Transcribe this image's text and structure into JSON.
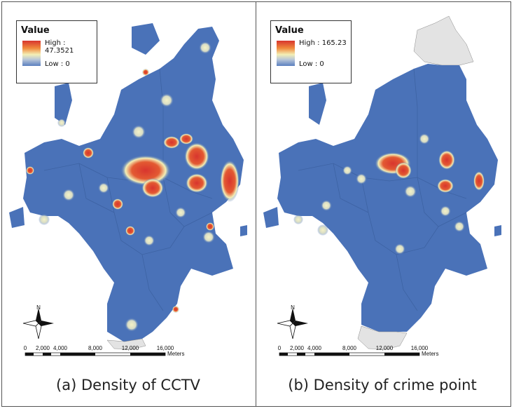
{
  "panels": [
    {
      "legend": {
        "title": "Value",
        "high": "High : 47.3521",
        "low": "Low : 0"
      },
      "caption": "(a) Density of CCTV"
    },
    {
      "legend": {
        "title": "Value",
        "high": "High : 165.23",
        "low": "Low : 0"
      },
      "caption": "(b) Density of crime point"
    }
  ],
  "scale": {
    "labels": [
      "0",
      "2,000",
      "4,000",
      "8,000",
      "12,000",
      "16,000"
    ],
    "unit": "Meters"
  },
  "north": "N",
  "colors": {
    "base": "#4a72b8",
    "high": "#d8352e",
    "mid": "#f3efb6",
    "nodata": "#e3e3e3"
  }
}
